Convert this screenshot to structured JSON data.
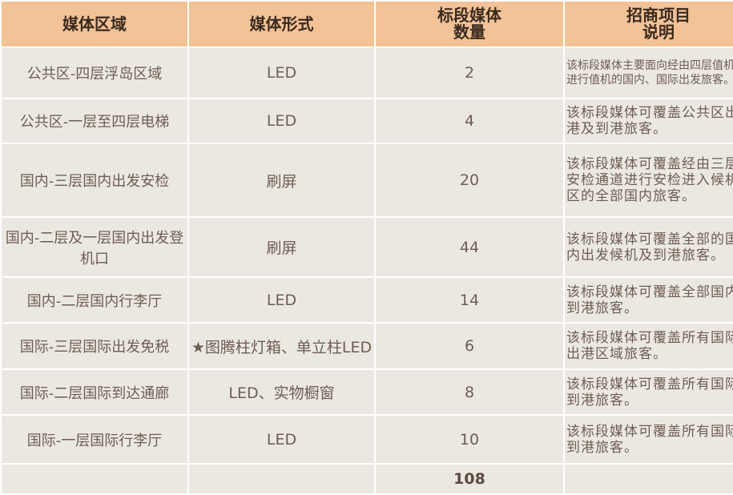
{
  "headers": [
    "媒体区域",
    "媒体形式",
    "标段媒体\n数量",
    "招商项目\n说明"
  ],
  "rows": [
    {
      "area": "公共区-四层浮岛区域",
      "form": "LED",
      "count": "2",
      "desc": "该标段媒体主要面向经由四层值机厅进行值机的国内、国际出发旅客。"
    },
    {
      "area": "公共区-一层至四层电梯",
      "form": "LED",
      "count": "4",
      "desc": "该标段媒体可覆盖公共区出港及到港旅客。"
    },
    {
      "area": "国内-三层国内出发安检",
      "form": "刷屏",
      "count": "20",
      "desc": "该标段媒体可覆盖经由三层安检通道进行安检进入候机区的全部国内旅客。"
    },
    {
      "area": "国内-二层及一层国内出发登机口",
      "form": "刷屏",
      "count": "44",
      "desc": "该标段媒体可覆盖全部的国内出发候机及到港旅客。"
    },
    {
      "area": "国内-二层国内行李厅",
      "form": "LED",
      "count": "14",
      "desc": "该标段媒体可覆盖全部国内到港旅客。"
    },
    {
      "area": "国际-三层国际出发免税",
      "form": "★图腾柱灯箱、单立柱LED",
      "count": "6",
      "desc": "该标段媒体可覆盖所有国际出港区域旅客。"
    },
    {
      "area": "国际-二层国际到达通廊",
      "form": "LED、实物橱窗",
      "count": "8",
      "desc": "该标段媒体可覆盖所有国际到港旅客。"
    },
    {
      "area": "国际-一层国际行李厅",
      "form": "LED",
      "count": "10",
      "desc": "该标段媒体可覆盖所有国际到港旅客。"
    }
  ],
  "total": "108"
}
